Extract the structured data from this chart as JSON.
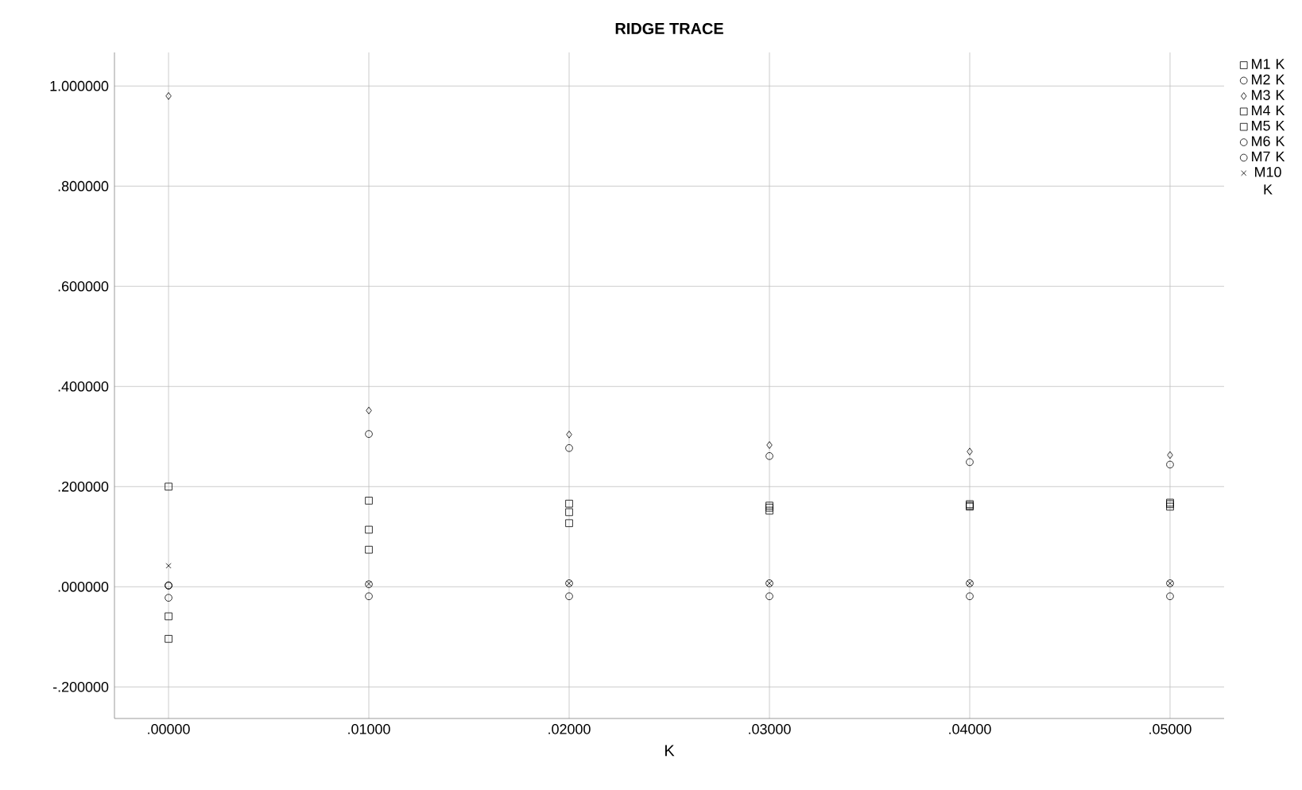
{
  "chart_data": {
    "type": "scatter",
    "title": "RIDGE TRACE",
    "xlabel": "K",
    "x": [
      0,
      0.01,
      0.02,
      0.03,
      0.04,
      0.05
    ],
    "series": [
      {
        "name": "M1 K",
        "color": "#000000",
        "marker": "square",
        "values": [
          0.2,
          0.172,
          0.166,
          0.162,
          0.165,
          0.168
        ]
      },
      {
        "name": "M2 K",
        "color": "#000000",
        "marker": "circle",
        "values": [
          0.003,
          0.005,
          0.007,
          0.007,
          0.007,
          0.007
        ]
      },
      {
        "name": "M3 K",
        "color": "#000000",
        "marker": "diamond",
        "values": [
          0.98,
          0.352,
          0.304,
          0.283,
          0.27,
          0.263
        ]
      },
      {
        "name": "M4 K",
        "color": "#000000",
        "marker": "square",
        "values": [
          -0.104,
          0.114,
          0.149,
          0.158,
          0.162,
          0.165
        ]
      },
      {
        "name": "M5 K",
        "color": "#000000",
        "marker": "square",
        "values": [
          -0.059,
          0.074,
          0.127,
          0.152,
          0.16,
          0.16
        ]
      },
      {
        "name": "M6 K",
        "color": "#000000",
        "marker": "circle",
        "values": [
          -0.022,
          0.305,
          0.277,
          0.261,
          0.249,
          0.244
        ]
      },
      {
        "name": "M7 K",
        "color": "#000000",
        "marker": "circle",
        "values": [
          0.002,
          -0.019,
          -0.019,
          -0.019,
          -0.019,
          -0.019
        ]
      },
      {
        "name": "M10 K",
        "color": "#000000",
        "marker": "cross",
        "values": [
          0.042,
          0.006,
          0.007,
          0.007,
          0.007,
          0.007
        ]
      }
    ],
    "xlim": [
      -0.0027,
      0.0527
    ],
    "xticks": [
      {
        "value": 0,
        "label": ".00000"
      },
      {
        "value": 0.01,
        "label": ".01000"
      },
      {
        "value": 0.02,
        "label": ".02000"
      },
      {
        "value": 0.03,
        "label": ".03000"
      },
      {
        "value": 0.04,
        "label": ".04000"
      },
      {
        "value": 0.05,
        "label": ".05000"
      }
    ],
    "ylim": [
      -0.263,
      1.067
    ],
    "yticks": [
      {
        "value": -0.2,
        "label": "-.200000"
      },
      {
        "value": 0,
        "label": ".000000"
      },
      {
        "value": 0.2,
        "label": ".200000"
      },
      {
        "value": 0.4,
        "label": ".400000"
      },
      {
        "value": 0.6,
        "label": ".600000"
      },
      {
        "value": 0.8,
        "label": ".800000"
      },
      {
        "value": 1.0,
        "label": "1.000000"
      }
    ],
    "grid": true,
    "legend": "right"
  }
}
